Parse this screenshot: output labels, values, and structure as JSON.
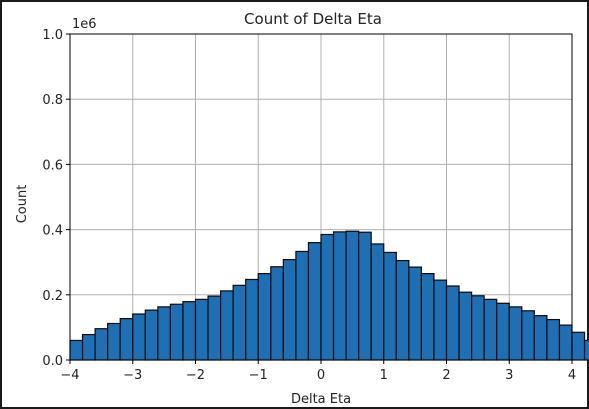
{
  "chart_data": {
    "type": "bar",
    "title": "Count of Delta Eta",
    "xlabel": "Delta Eta",
    "ylabel": "Count",
    "y_multiplier_label": "1e6",
    "xlim": [
      -4,
      4
    ],
    "ylim": [
      0,
      1.0
    ],
    "xticks": [
      "−4",
      "−3",
      "−2",
      "−1",
      "0",
      "1",
      "2",
      "3",
      "4"
    ],
    "yticks": [
      "0.0",
      "0.2",
      "0.4",
      "0.6",
      "0.8",
      "1.0"
    ],
    "grid": true,
    "bin_edges_start": -4,
    "bin_width": 0.2,
    "values": [
      0.06,
      0.078,
      0.096,
      0.112,
      0.127,
      0.141,
      0.153,
      0.163,
      0.171,
      0.179,
      0.186,
      0.196,
      0.212,
      0.229,
      0.247,
      0.265,
      0.286,
      0.308,
      0.333,
      0.36,
      0.385,
      0.393,
      0.395,
      0.392,
      0.356,
      0.33,
      0.305,
      0.285,
      0.265,
      0.245,
      0.227,
      0.208,
      0.197,
      0.186,
      0.174,
      0.163,
      0.151,
      0.136,
      0.124,
      0.107,
      0.085,
      0.06
    ],
    "colors": {
      "bar_fill": "#1f6fb4",
      "bar_edge": "#0a0a0a",
      "grid": "#b0b0b0",
      "axis": "#000000"
    }
  }
}
